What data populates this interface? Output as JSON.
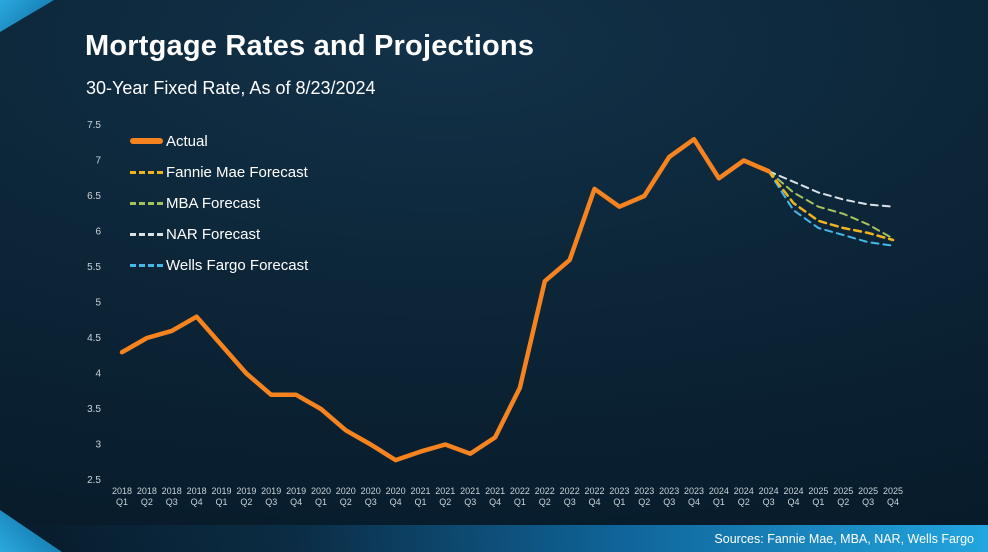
{
  "header": {
    "title": "Mortgage Rates and Projections",
    "subtitle": "30-Year Fixed Rate, As of 8/23/2024"
  },
  "footer": {
    "sources": "Sources: Fannie Mae, MBA, NAR, Wells Fargo"
  },
  "accent_color": "#1E9CD8",
  "chart_data": {
    "type": "line",
    "title": "Mortgage Rates and Projections",
    "subtitle": "30-Year Fixed Rate, As of 8/23/2024",
    "xlabel": "",
    "ylabel": "",
    "ylim": [
      2.5,
      7.5
    ],
    "yticks": [
      2.5,
      3,
      3.5,
      4,
      4.5,
      5,
      5.5,
      6,
      6.5,
      7,
      7.5
    ],
    "grid": false,
    "legend_position": "top-left",
    "categories": [
      "2018 Q1",
      "2018 Q2",
      "2018 Q3",
      "2018 Q4",
      "2019 Q1",
      "2019 Q2",
      "2019 Q3",
      "2019 Q4",
      "2020 Q1",
      "2020 Q2",
      "2020 Q3",
      "2020 Q4",
      "2021 Q1",
      "2021 Q2",
      "2021 Q3",
      "2021 Q4",
      "2022 Q1",
      "2022 Q2",
      "2022 Q3",
      "2022 Q4",
      "2023 Q1",
      "2023 Q2",
      "2023 Q3",
      "2023 Q4",
      "2024 Q1",
      "2024 Q2",
      "2024 Q3",
      "2024 Q4",
      "2025 Q1",
      "2025 Q2",
      "2025 Q3",
      "2025 Q4"
    ],
    "series": [
      {
        "name": "Actual",
        "color": "#F5831F",
        "style": "solid",
        "width": 4.5,
        "values": [
          4.3,
          4.5,
          4.6,
          4.8,
          4.4,
          4.0,
          3.7,
          3.7,
          3.5,
          3.2,
          3.0,
          2.78,
          2.9,
          3.0,
          2.87,
          3.1,
          3.8,
          5.3,
          5.6,
          6.6,
          6.35,
          6.5,
          7.05,
          7.3,
          6.75,
          7.0,
          6.85,
          null,
          null,
          null,
          null,
          null
        ]
      },
      {
        "name": "Fannie Mae Forecast",
        "color": "#F0B322",
        "style": "dashed",
        "width": 2.5,
        "values": [
          null,
          null,
          null,
          null,
          null,
          null,
          null,
          null,
          null,
          null,
          null,
          null,
          null,
          null,
          null,
          null,
          null,
          null,
          null,
          null,
          null,
          null,
          null,
          null,
          null,
          null,
          6.85,
          6.4,
          6.15,
          6.05,
          5.98,
          5.88
        ]
      },
      {
        "name": "MBA Forecast",
        "color": "#A6C25D",
        "style": "dashed",
        "width": 2,
        "values": [
          null,
          null,
          null,
          null,
          null,
          null,
          null,
          null,
          null,
          null,
          null,
          null,
          null,
          null,
          null,
          null,
          null,
          null,
          null,
          null,
          null,
          null,
          null,
          null,
          null,
          null,
          6.85,
          6.55,
          6.35,
          6.25,
          6.1,
          5.9
        ]
      },
      {
        "name": "NAR Forecast",
        "color": "#D9E2E8",
        "style": "dashed",
        "width": 2,
        "values": [
          null,
          null,
          null,
          null,
          null,
          null,
          null,
          null,
          null,
          null,
          null,
          null,
          null,
          null,
          null,
          null,
          null,
          null,
          null,
          null,
          null,
          null,
          null,
          null,
          null,
          null,
          6.85,
          6.7,
          6.55,
          6.45,
          6.38,
          6.35
        ]
      },
      {
        "name": "Wells Fargo Forecast",
        "color": "#45B7E8",
        "style": "dashed",
        "width": 2,
        "values": [
          null,
          null,
          null,
          null,
          null,
          null,
          null,
          null,
          null,
          null,
          null,
          null,
          null,
          null,
          null,
          null,
          null,
          null,
          null,
          null,
          null,
          null,
          null,
          null,
          null,
          null,
          6.85,
          6.3,
          6.05,
          5.95,
          5.85,
          5.8
        ]
      }
    ]
  }
}
